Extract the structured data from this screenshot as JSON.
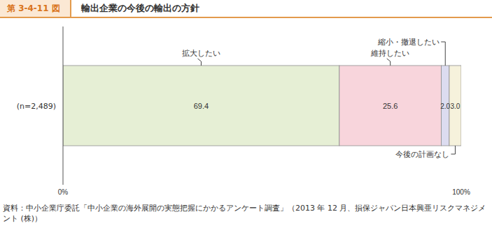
{
  "chart_data": {
    "type": "bar",
    "orientation": "horizontal",
    "stacked": true,
    "data_labels": true,
    "grid": false,
    "figure_number": "第 3-4-11 図",
    "title": "輸出企業の今後の輸出の方針",
    "source": "資料：中小企業庁委託「中小企業の海外展開の実態把握にかかるアンケート調査」（2013 年 12 月、損保ジャパン日本興亜リスクマネジメント (株)）",
    "categories": [
      "(n=2,489)"
    ],
    "xlim": [
      0,
      100
    ],
    "xticks": [
      {
        "value": 0,
        "label": "0%"
      },
      {
        "value": 100,
        "label": "100%"
      }
    ],
    "series": [
      {
        "name": "拡大したい",
        "color": "#e6efd5",
        "values": [
          69.4
        ],
        "value_labels": [
          "69.4"
        ]
      },
      {
        "name": "維持したい",
        "color": "#f8d5dc",
        "values": [
          25.6
        ],
        "value_labels": [
          "25.6"
        ]
      },
      {
        "name": "縮小・撤退したい",
        "color": "#dcdcf0",
        "values": [
          2.0
        ],
        "value_labels": [
          "2.0"
        ]
      },
      {
        "name": "今後の計画なし",
        "color": "#f6f2dc",
        "values": [
          3.0
        ],
        "value_labels": [
          "3.0"
        ]
      }
    ]
  }
}
